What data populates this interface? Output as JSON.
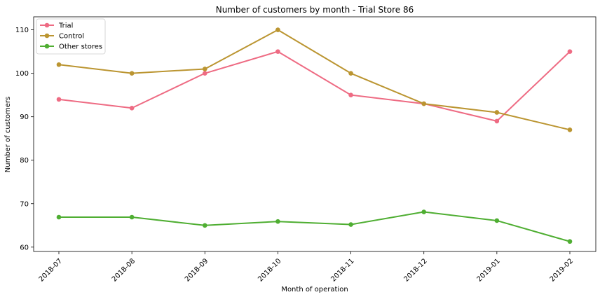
{
  "chart_data": {
    "type": "line",
    "title": "Number of customers by month - Trial Store 86",
    "xlabel": "Month of operation",
    "ylabel": "Number of customers",
    "categories": [
      "2018-07",
      "2018-08",
      "2018-09",
      "2018-10",
      "2018-11",
      "2018-12",
      "2019-01",
      "2019-02"
    ],
    "ylim": [
      59,
      113
    ],
    "yticks": [
      60,
      70,
      80,
      90,
      100,
      110
    ],
    "grid": false,
    "legend_position": "top-left",
    "series": [
      {
        "name": "Trial",
        "color": "#ee6b83",
        "values": [
          94,
          92,
          100,
          105,
          95,
          93,
          89,
          105
        ]
      },
      {
        "name": "Control",
        "color": "#bb9531",
        "values": [
          102,
          100,
          101,
          110,
          100,
          93,
          91,
          87
        ]
      },
      {
        "name": "Other stores",
        "color": "#4fae32",
        "values": [
          66.9,
          66.9,
          65,
          65.9,
          65.2,
          68.1,
          66.1,
          61.3
        ]
      }
    ]
  }
}
